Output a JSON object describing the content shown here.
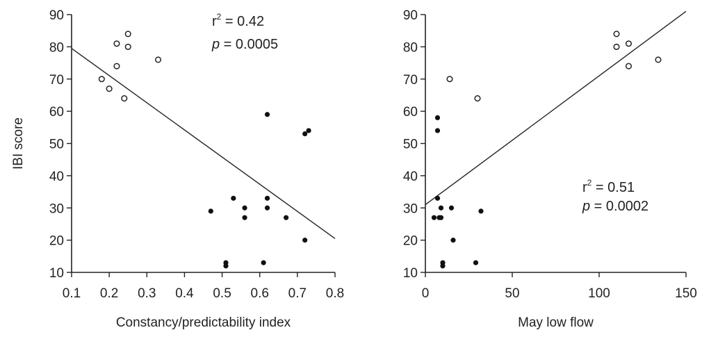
{
  "chart_data": [
    {
      "type": "scatter",
      "xlabel": "Constancy/predictability index",
      "ylabel": "IBI score",
      "xlim": [
        0.1,
        0.8
      ],
      "ylim": [
        10,
        90
      ],
      "xticks": [
        "0.1",
        "0.2",
        "0.3",
        "0.4",
        "0.5",
        "0.6",
        "0.7",
        "0.8"
      ],
      "yticks": [
        "10",
        "20",
        "30",
        "40",
        "50",
        "60",
        "70",
        "80",
        "90"
      ],
      "grid": false,
      "annotation": {
        "r2_prefix": "r",
        "r2_sup": "2",
        "r2_value": " = 0.42",
        "p_label": "p",
        "p_value": " = 0.0005"
      },
      "regression_line": {
        "x": [
          0.1,
          0.8
        ],
        "y": [
          79.5,
          20.5
        ]
      },
      "series": [
        {
          "marker": "open-circle",
          "x": [
            0.18,
            0.2,
            0.22,
            0.22,
            0.24,
            0.25,
            0.25,
            0.33
          ],
          "y": [
            70,
            67,
            74,
            81,
            64,
            84,
            80,
            76
          ]
        },
        {
          "marker": "filled-circle",
          "x": [
            0.47,
            0.51,
            0.51,
            0.53,
            0.56,
            0.56,
            0.61,
            0.62,
            0.62,
            0.62,
            0.67,
            0.72,
            0.72,
            0.73
          ],
          "y": [
            29,
            13,
            12,
            33,
            30,
            27,
            13,
            33,
            30,
            59,
            27,
            20,
            53,
            54
          ]
        }
      ]
    },
    {
      "type": "scatter",
      "xlabel": "May low flow",
      "ylabel": "",
      "xlim": [
        0,
        150
      ],
      "ylim": [
        10,
        90
      ],
      "xticks": [
        "0",
        "50",
        "100",
        "150"
      ],
      "yticks": [
        "10",
        "20",
        "30",
        "40",
        "50",
        "60",
        "70",
        "80",
        "90"
      ],
      "grid": false,
      "annotation": {
        "r2_prefix": "r",
        "r2_sup": "2",
        "r2_value": " = 0.51",
        "p_label": "p",
        "p_value": " = 0.0002"
      },
      "regression_line": {
        "x": [
          0,
          150
        ],
        "y": [
          31,
          91
        ]
      },
      "series": [
        {
          "marker": "open-circle",
          "x": [
            14,
            30,
            110,
            110,
            117,
            117,
            134
          ],
          "y": [
            70,
            64,
            84,
            80,
            81,
            74,
            76
          ]
        },
        {
          "marker": "filled-circle",
          "x": [
            5,
            7,
            7,
            7,
            8,
            9,
            9,
            10,
            10,
            15,
            16,
            29,
            32
          ],
          "y": [
            27,
            54,
            58,
            33,
            27,
            30,
            27,
            13,
            12,
            30,
            20,
            13,
            29
          ]
        }
      ]
    }
  ]
}
